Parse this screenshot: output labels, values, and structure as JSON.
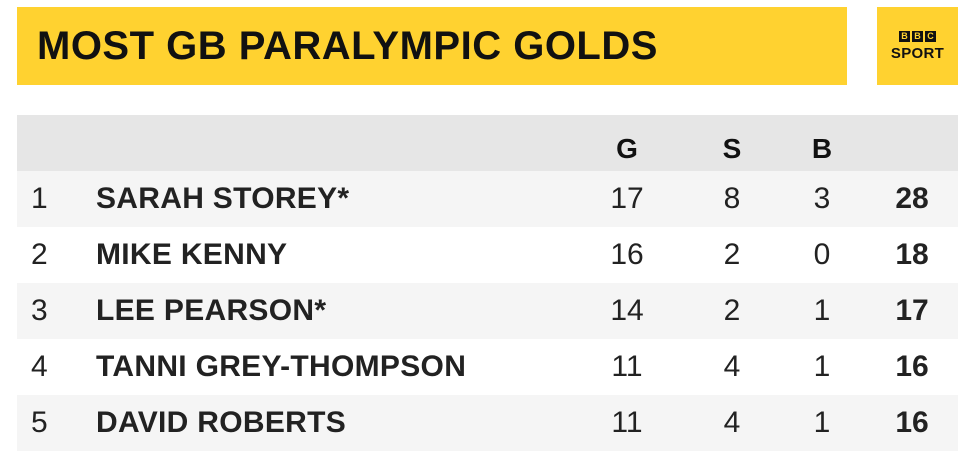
{
  "title": "MOST GB PARALYMPIC GOLDS",
  "logo": {
    "blocks": [
      "B",
      "B",
      "C"
    ],
    "word": "SPORT"
  },
  "columns": {
    "gold": "G",
    "silver": "S",
    "bronze": "B"
  },
  "rows": [
    {
      "rank": "1",
      "name": "SARAH STOREY*",
      "gold": "17",
      "silver": "8",
      "bronze": "3",
      "total": "28"
    },
    {
      "rank": "2",
      "name": "MIKE KENNY",
      "gold": "16",
      "silver": "2",
      "bronze": "0",
      "total": "18"
    },
    {
      "rank": "3",
      "name": "LEE PEARSON*",
      "gold": "14",
      "silver": "2",
      "bronze": "1",
      "total": "17"
    },
    {
      "rank": "4",
      "name": "TANNI GREY-THOMPSON",
      "gold": "11",
      "silver": "4",
      "bronze": "1",
      "total": "16"
    },
    {
      "rank": "5",
      "name": "DAVID ROBERTS",
      "gold": "11",
      "silver": "4",
      "bronze": "1",
      "total": "16"
    }
  ],
  "colors": {
    "accent": "#ffd230",
    "header_bg": "#e6e6e6",
    "row_alt_bg": "#f5f5f5"
  }
}
